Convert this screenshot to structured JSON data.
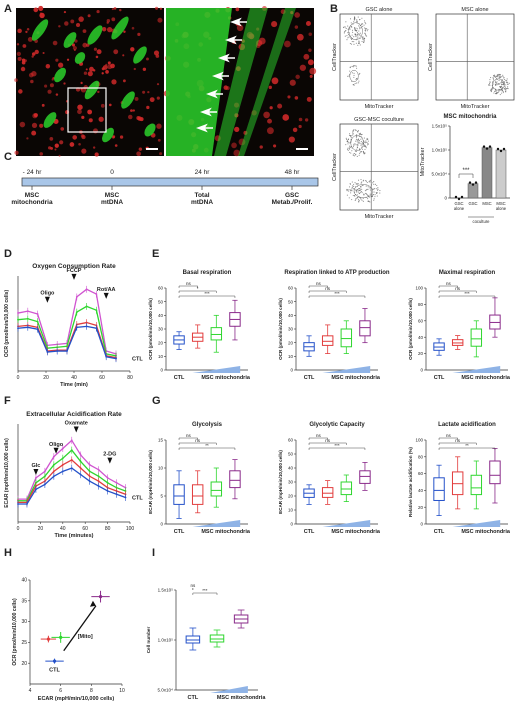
{
  "panel_labels": [
    "A",
    "B",
    "C",
    "D",
    "E",
    "F",
    "G",
    "H",
    "I"
  ],
  "panel_a": {
    "scale_bar_note": "",
    "arrow_icon": "arrowhead-icon",
    "colors": {
      "green": "#2bd12b",
      "red": "#d42a2a",
      "bg": "#0a0604"
    }
  },
  "chart_data": [
    {
      "type": "scatter",
      "panel": "B",
      "title": "GSC alone",
      "xlabel": "MitoTracker",
      "ylabel": "CellTracker"
    },
    {
      "type": "scatter",
      "panel": "B",
      "title": "MSC alone",
      "xlabel": "MitoTracker",
      "ylabel": "CellTracker"
    },
    {
      "type": "scatter",
      "panel": "B",
      "title": "GSC-MSC coculture",
      "xlabel": "MitoTracker",
      "ylabel": "CellTracker"
    },
    {
      "type": "bar",
      "panel": "B",
      "title": "MSC mitochondria",
      "ylabel": "MitoTracker",
      "categories": [
        "GSC alone",
        "GSC",
        "MSC",
        "MSC alone"
      ],
      "group_label": "coculture",
      "values": [
        0,
        30000,
        105000,
        100000
      ],
      "ylim": [
        0,
        150000
      ],
      "yticks": [
        "0",
        "5.0x10⁴",
        "1.0x10⁵",
        "1.5x10⁵"
      ],
      "significance": "***",
      "colors": [
        "#ffffff",
        "#999999",
        "#888888",
        "#cccccc"
      ]
    },
    {
      "type": "timeline",
      "panel": "C",
      "ticks": [
        "- 24 hr",
        "0",
        "24 hr",
        "48 hr"
      ],
      "events": [
        "MSC\nmitochondria",
        "MSC\nmtDNA",
        "Total\nmtDNA",
        "GSC\nMetab./Prolif."
      ],
      "bar_color": "#a9c6e8"
    },
    {
      "type": "line",
      "panel": "D",
      "title": "Oxygen Consumption Rate",
      "xlabel": "Time (min)",
      "ylabel": "OCR (pmol/min/10,000 cells)",
      "x": [
        0,
        7,
        14,
        21,
        28,
        35,
        42,
        49,
        56,
        63,
        70
      ],
      "xlim": [
        0,
        80
      ],
      "xticks": [
        0,
        20,
        40,
        60,
        80
      ],
      "ylim": [
        0,
        10
      ],
      "injections": [
        "Oligo",
        "FCCP",
        "Rot/AA"
      ],
      "series_label": "CTL",
      "series": [
        {
          "color": "#d054d0",
          "values": [
            6.1,
            6.3,
            6.0,
            2.7,
            2.8,
            2.9,
            7.8,
            8.6,
            8.1,
            2.1,
            1.8
          ]
        },
        {
          "color": "#2ed62e",
          "values": [
            5.4,
            5.5,
            5.2,
            2.4,
            2.5,
            2.6,
            6.2,
            6.8,
            6.4,
            1.8,
            1.6
          ]
        },
        {
          "color": "#e23c3c",
          "values": [
            4.7,
            4.8,
            4.6,
            2.1,
            2.2,
            2.2,
            4.9,
            5.1,
            4.8,
            1.6,
            1.4
          ]
        },
        {
          "color": "#2451c9",
          "values": [
            4.5,
            4.6,
            4.4,
            2.0,
            2.1,
            2.1,
            4.6,
            4.7,
            4.5,
            1.5,
            1.3
          ]
        }
      ]
    },
    {
      "type": "box",
      "panel": "E",
      "title": "Basal respiration",
      "ylabel": "OCR (pmol/min/10,000 cells)",
      "groups_label": "MSC mitochondria",
      "first_label": "CTL",
      "ylim": [
        0,
        60
      ],
      "yticks": [
        0,
        10,
        20,
        30,
        40,
        50,
        60
      ],
      "boxes": [
        {
          "color": "#2451c9",
          "q1": 19,
          "med": 22,
          "q3": 25,
          "min": 15,
          "max": 28
        },
        {
          "color": "#e23c3c",
          "q1": 21,
          "med": 24,
          "q3": 27,
          "min": 16,
          "max": 33
        },
        {
          "color": "#2ed62e",
          "q1": 22,
          "med": 26,
          "q3": 31,
          "min": 13,
          "max": 40
        },
        {
          "color": "#8a2a8a",
          "q1": 32,
          "med": 37,
          "q3": 42,
          "min": 22,
          "max": 51
        }
      ],
      "brackets": [
        {
          "to": 2,
          "label": "ns"
        },
        {
          "to": 3,
          "label": "*"
        },
        {
          "to": 4,
          "label": "***"
        }
      ]
    },
    {
      "type": "box",
      "panel": "E",
      "title": "Respiration linked to ATP production",
      "ylabel": "OCR (pmol/min/10,000 cells)",
      "ylim": [
        0,
        60
      ],
      "yticks": [
        0,
        10,
        20,
        30,
        40,
        50,
        60
      ],
      "boxes": [
        {
          "color": "#2451c9",
          "q1": 14,
          "med": 17,
          "q3": 20,
          "min": 10,
          "max": 25
        },
        {
          "color": "#e23c3c",
          "q1": 18,
          "med": 21,
          "q3": 25,
          "min": 12,
          "max": 33
        },
        {
          "color": "#2ed62e",
          "q1": 17,
          "med": 23,
          "q3": 30,
          "min": 12,
          "max": 36
        },
        {
          "color": "#8a2a8a",
          "q1": 25,
          "med": 31,
          "q3": 36,
          "min": 20,
          "max": 45
        }
      ],
      "brackets": [
        {
          "to": 2,
          "label": "ns"
        },
        {
          "to": 3,
          "label": "ns"
        },
        {
          "to": 4,
          "label": "***"
        }
      ]
    },
    {
      "type": "box",
      "panel": "E",
      "title": "Maximal respiration",
      "ylabel": "OCR (pmol/min/10,000 cells)",
      "ylim": [
        0,
        100
      ],
      "yticks": [
        0,
        20,
        40,
        60,
        80,
        100
      ],
      "boxes": [
        {
          "color": "#2451c9",
          "q1": 24,
          "med": 28,
          "q3": 33,
          "min": 18,
          "max": 38
        },
        {
          "color": "#e23c3c",
          "q1": 30,
          "med": 33,
          "q3": 37,
          "min": 25,
          "max": 42
        },
        {
          "color": "#2ed62e",
          "q1": 29,
          "med": 38,
          "q3": 50,
          "min": 16,
          "max": 60
        },
        {
          "color": "#8a2a8a",
          "q1": 50,
          "med": 58,
          "q3": 67,
          "min": 40,
          "max": 88
        }
      ],
      "brackets": [
        {
          "to": 2,
          "label": "ns"
        },
        {
          "to": 3,
          "label": "ns"
        },
        {
          "to": 4,
          "label": "***"
        }
      ]
    },
    {
      "type": "line",
      "panel": "F",
      "title": "Extracellular Acidification Rate",
      "xlabel": "Time (minutes)",
      "ylabel": "ECAR (mpH/min/10,000 cells)",
      "x": [
        0,
        8,
        16,
        24,
        32,
        40,
        48,
        56,
        64,
        72,
        80,
        88,
        96
      ],
      "xlim": [
        0,
        100
      ],
      "xticks": [
        0,
        20,
        40,
        60,
        80,
        100
      ],
      "ylim": [
        0,
        60
      ],
      "injections": [
        "Glc",
        "Oligo",
        "Oxamate",
        "2-DG"
      ],
      "series_label": "CTL",
      "series": [
        {
          "color": "#d054d0",
          "values": [
            14,
            14,
            27,
            31,
            40,
            45,
            50,
            41,
            35,
            32,
            27,
            24,
            21
          ]
        },
        {
          "color": "#2ed62e",
          "values": [
            13,
            13,
            24,
            28,
            35,
            39,
            44,
            37,
            31,
            28,
            24,
            21,
            19
          ]
        },
        {
          "color": "#e23c3c",
          "values": [
            12,
            12,
            22,
            25,
            31,
            35,
            38,
            33,
            28,
            25,
            21,
            19,
            17
          ]
        },
        {
          "color": "#2451c9",
          "values": [
            11,
            11,
            20,
            23,
            28,
            31,
            33,
            29,
            25,
            22,
            19,
            17,
            15
          ]
        }
      ]
    },
    {
      "type": "box",
      "panel": "G",
      "title": "Glycolysis",
      "ylabel": "ECAR (mpH/min/10,000 cells)",
      "groups_label": "MSC mitochondria",
      "first_label": "CTL",
      "ylim": [
        0,
        15
      ],
      "yticks": [
        0,
        5,
        10,
        15
      ],
      "boxes": [
        {
          "color": "#2451c9",
          "q1": 3.5,
          "med": 5.0,
          "q3": 7.0,
          "min": 1.0,
          "max": 9.5
        },
        {
          "color": "#e23c3c",
          "q1": 3.5,
          "med": 5.0,
          "q3": 7.0,
          "min": 2.0,
          "max": 9.5
        },
        {
          "color": "#2ed62e",
          "q1": 5.0,
          "med": 6.0,
          "q3": 7.5,
          "min": 3.0,
          "max": 10.0
        },
        {
          "color": "#8a2a8a",
          "q1": 6.5,
          "med": 7.8,
          "q3": 9.5,
          "min": 4.5,
          "max": 11.5
        }
      ],
      "brackets": [
        {
          "to": 2,
          "label": "ns"
        },
        {
          "to": 3,
          "label": "ns"
        },
        {
          "to": 4,
          "label": "**"
        }
      ]
    },
    {
      "type": "box",
      "panel": "G",
      "title": "Glycolytic Capacity",
      "ylabel": "ECAR (mpH/min/10,000 cells)",
      "ylim": [
        0,
        60
      ],
      "yticks": [
        0,
        10,
        20,
        30,
        40,
        50,
        60
      ],
      "boxes": [
        {
          "color": "#2451c9",
          "q1": 19,
          "med": 22,
          "q3": 25,
          "min": 14,
          "max": 28
        },
        {
          "color": "#e23c3c",
          "q1": 19,
          "med": 22,
          "q3": 26,
          "min": 14,
          "max": 31
        },
        {
          "color": "#2ed62e",
          "q1": 21,
          "med": 25,
          "q3": 30,
          "min": 16,
          "max": 35
        },
        {
          "color": "#8a2a8a",
          "q1": 29,
          "med": 34,
          "q3": 38,
          "min": 24,
          "max": 44
        }
      ],
      "brackets": [
        {
          "to": 2,
          "label": "ns"
        },
        {
          "to": 3,
          "label": "ns"
        },
        {
          "to": 4,
          "label": "***"
        }
      ]
    },
    {
      "type": "box",
      "panel": "G",
      "title": "Lactate acidification",
      "ylabel": "Relative lactate acidification (%)",
      "ylim": [
        0,
        100
      ],
      "yticks": [
        0,
        20,
        40,
        60,
        80,
        100
      ],
      "boxes": [
        {
          "color": "#2451c9",
          "q1": 28,
          "med": 40,
          "q3": 55,
          "min": 10,
          "max": 70
        },
        {
          "color": "#e23c3c",
          "q1": 35,
          "med": 48,
          "q3": 62,
          "min": 18,
          "max": 80
        },
        {
          "color": "#2ed62e",
          "q1": 35,
          "med": 43,
          "q3": 58,
          "min": 18,
          "max": 75
        },
        {
          "color": "#8a2a8a",
          "q1": 48,
          "med": 58,
          "q3": 75,
          "min": 25,
          "max": 90
        }
      ],
      "brackets": [
        {
          "to": 2,
          "label": "ns"
        },
        {
          "to": 3,
          "label": "ns"
        },
        {
          "to": 4,
          "label": "**"
        }
      ]
    },
    {
      "type": "scatter",
      "panel": "H",
      "xlabel": "ECAR (mpH/min/10,000 cells)",
      "ylabel": "OCR (pmol/min/10,000 cells)",
      "xlim": [
        4,
        10
      ],
      "xticks": [
        4,
        6,
        8,
        10
      ],
      "ylim": [
        15,
        40
      ],
      "yticks": [
        20,
        25,
        30,
        35,
        40
      ],
      "annotation": "[Mito]",
      "ctl_label": "CTL",
      "points": [
        {
          "color": "#2451c9",
          "x": 5.6,
          "y": 20.5,
          "xerr": 0.6,
          "yerr": 0.6
        },
        {
          "color": "#e23c3c",
          "x": 5.2,
          "y": 25.8,
          "xerr": 0.5,
          "yerr": 0.8
        },
        {
          "color": "#2ed62e",
          "x": 6.0,
          "y": 26.2,
          "xerr": 0.6,
          "yerr": 1.3
        },
        {
          "color": "#8a2a8a",
          "x": 8.6,
          "y": 36.0,
          "xerr": 0.6,
          "yerr": 1.4
        }
      ]
    },
    {
      "type": "box",
      "panel": "I",
      "ylabel": "Cell number",
      "groups_label": "MSC mitochondria",
      "first_label": "CTL",
      "ylim": [
        50000,
        150000
      ],
      "yticks": [
        "5.0x10⁴",
        "1.0x10⁵",
        "1.5x10⁵"
      ],
      "ytick_values": [
        50000,
        100000,
        150000
      ],
      "boxes": [
        {
          "color": "#2451c9",
          "q1": 97000,
          "med": 100000,
          "q3": 104000,
          "min": 90000,
          "max": 112000
        },
        {
          "color": "#2ed62e",
          "q1": 98000,
          "med": 101000,
          "q3": 105000,
          "min": 93000,
          "max": 110000
        },
        {
          "color": "#8a2a8a",
          "q1": 117000,
          "med": 121000,
          "q3": 125000,
          "min": 112000,
          "max": 130000
        }
      ],
      "brackets": [
        {
          "to": 1,
          "label": "ns"
        },
        {
          "to": 2,
          "label": "***"
        }
      ]
    }
  ]
}
